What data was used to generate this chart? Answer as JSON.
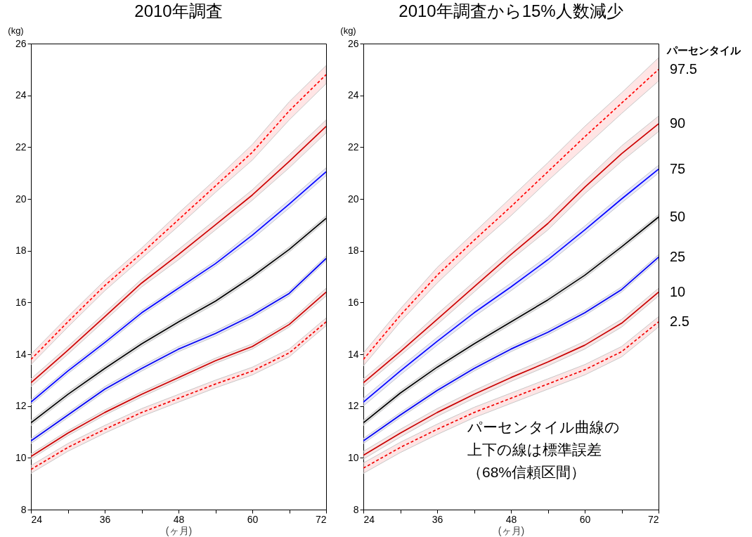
{
  "chart_data": [
    {
      "type": "line",
      "title": "2010年調査",
      "xlabel": "(ヶ月)",
      "ylabel": "(kg)",
      "x": [
        24,
        30,
        36,
        42,
        48,
        54,
        60,
        66,
        72
      ],
      "xlim": [
        24,
        72
      ],
      "xticks": [
        24,
        {
          "value": 30,
          "label": null
        },
        36,
        {
          "value": 42,
          "label": null
        },
        48,
        {
          "value": 54,
          "label": null
        },
        60,
        {
          "value": 66,
          "label": null
        },
        72
      ],
      "ylim": [
        8,
        26
      ],
      "yticks": [
        8,
        10,
        12,
        14,
        16,
        18,
        20,
        22,
        24,
        26
      ],
      "series": [
        {
          "color": "#ff0000",
          "line_style": "dashed",
          "values": [
            13.8,
            15.25,
            16.65,
            17.9,
            19.2,
            20.5,
            21.8,
            23.4,
            24.8
          ],
          "upper": [
            14.0,
            15.45,
            16.85,
            18.1,
            19.45,
            20.75,
            22.1,
            23.75,
            25.15
          ],
          "lower": [
            13.6,
            15.05,
            16.45,
            17.7,
            18.95,
            20.25,
            21.5,
            23.05,
            24.45
          ]
        },
        {
          "color": "#cc0000",
          "line_style": "solid",
          "values": [
            12.9,
            14.15,
            15.45,
            16.75,
            17.85,
            19.0,
            20.15,
            21.45,
            22.8
          ],
          "upper": [
            13.05,
            14.3,
            15.6,
            16.9,
            18.05,
            19.2,
            20.35,
            21.7,
            23.05
          ],
          "lower": [
            12.75,
            14.0,
            15.3,
            16.6,
            17.65,
            18.8,
            19.95,
            21.2,
            22.55
          ]
        },
        {
          "color": "#0000ff",
          "line_style": "solid",
          "values": [
            12.15,
            13.35,
            14.45,
            15.6,
            16.55,
            17.5,
            18.6,
            19.8,
            21.05
          ],
          "upper": [
            12.25,
            13.45,
            14.55,
            15.7,
            16.65,
            17.6,
            18.75,
            19.95,
            21.2
          ],
          "lower": [
            12.05,
            13.25,
            14.35,
            15.5,
            16.45,
            17.4,
            18.45,
            19.65,
            20.9
          ]
        },
        {
          "color": "#000000",
          "line_style": "solid",
          "values": [
            11.35,
            12.45,
            13.45,
            14.4,
            15.25,
            16.05,
            17.0,
            18.05,
            19.25
          ],
          "upper": [
            11.45,
            12.55,
            13.55,
            14.5,
            15.35,
            16.15,
            17.1,
            18.15,
            19.35
          ],
          "lower": [
            11.25,
            12.35,
            13.35,
            14.3,
            15.15,
            15.95,
            16.9,
            17.95,
            19.15
          ]
        },
        {
          "color": "#0000f0",
          "line_style": "solid",
          "values": [
            10.65,
            11.65,
            12.65,
            13.45,
            14.2,
            14.8,
            15.5,
            16.35,
            17.7
          ],
          "upper": [
            10.75,
            11.75,
            12.75,
            13.55,
            14.3,
            14.9,
            15.6,
            16.45,
            17.8
          ],
          "lower": [
            10.55,
            11.55,
            12.55,
            13.35,
            14.1,
            14.7,
            15.4,
            16.25,
            17.6
          ]
        },
        {
          "color": "#c80000",
          "line_style": "solid",
          "values": [
            10.05,
            10.95,
            11.75,
            12.45,
            13.1,
            13.75,
            14.3,
            15.15,
            16.4
          ],
          "upper": [
            10.15,
            11.05,
            11.85,
            12.55,
            13.2,
            13.85,
            14.4,
            15.25,
            16.55
          ],
          "lower": [
            9.95,
            10.85,
            11.65,
            12.35,
            13.0,
            13.65,
            14.2,
            15.05,
            16.25
          ]
        },
        {
          "color": "#f00000",
          "line_style": "dashed",
          "values": [
            9.55,
            10.4,
            11.1,
            11.75,
            12.3,
            12.85,
            13.35,
            14.05,
            15.25
          ],
          "upper": [
            9.7,
            10.55,
            11.25,
            11.9,
            12.45,
            13.0,
            13.5,
            14.2,
            15.4
          ],
          "lower": [
            9.4,
            10.25,
            10.95,
            11.6,
            12.15,
            12.7,
            13.2,
            13.9,
            15.1
          ]
        }
      ]
    },
    {
      "type": "line",
      "title": "2010年調査から15%人数減少",
      "xlabel": "(ヶ月)",
      "ylabel": "(kg)",
      "legend_title": "パーセンタイル",
      "annotations": [
        "パーセンタイル曲線の",
        "上下の線は標準誤差",
        "（68%信頼区間）"
      ],
      "x": [
        24,
        30,
        36,
        42,
        48,
        54,
        60,
        66,
        72
      ],
      "xlim": [
        24,
        72
      ],
      "xticks": [
        24,
        {
          "value": 30,
          "label": null
        },
        36,
        {
          "value": 42,
          "label": null
        },
        48,
        {
          "value": 54,
          "label": null
        },
        60,
        {
          "value": 66,
          "label": null
        },
        72
      ],
      "ylim": [
        8,
        26
      ],
      "yticks": [
        8,
        10,
        12,
        14,
        16,
        18,
        20,
        22,
        24,
        26
      ],
      "series": [
        {
          "name": "97.5",
          "color": "#ff0000",
          "line_style": "dashed",
          "values": [
            13.8,
            15.5,
            17.05,
            18.4,
            19.7,
            21.05,
            22.4,
            23.7,
            25.0
          ],
          "upper": [
            14.05,
            15.75,
            17.35,
            18.7,
            20.05,
            21.4,
            22.8,
            24.1,
            25.45
          ],
          "lower": [
            13.55,
            15.25,
            16.75,
            18.1,
            19.35,
            20.7,
            22.0,
            23.3,
            24.55
          ]
        },
        {
          "name": "90",
          "color": "#cc0000",
          "line_style": "solid",
          "values": [
            12.9,
            14.1,
            15.35,
            16.6,
            17.85,
            19.05,
            20.45,
            21.75,
            22.9
          ],
          "upper": [
            13.05,
            14.25,
            15.55,
            16.8,
            18.05,
            19.3,
            20.7,
            22.05,
            23.2
          ],
          "lower": [
            12.75,
            13.95,
            15.15,
            16.4,
            17.65,
            18.8,
            20.2,
            21.45,
            22.6
          ]
        },
        {
          "name": "75",
          "color": "#0000ff",
          "line_style": "solid",
          "values": [
            12.15,
            13.35,
            14.5,
            15.6,
            16.6,
            17.65,
            18.8,
            20.0,
            21.15
          ],
          "upper": [
            12.3,
            13.5,
            14.65,
            15.75,
            16.75,
            17.8,
            18.95,
            20.15,
            21.3
          ],
          "lower": [
            12.0,
            13.2,
            14.35,
            15.45,
            16.45,
            17.5,
            18.65,
            19.85,
            21.0
          ]
        },
        {
          "name": "50",
          "color": "#000000",
          "line_style": "solid",
          "values": [
            11.35,
            12.5,
            13.5,
            14.4,
            15.25,
            16.1,
            17.05,
            18.15,
            19.3
          ],
          "upper": [
            11.45,
            12.6,
            13.6,
            14.5,
            15.35,
            16.2,
            17.15,
            18.25,
            19.4
          ],
          "lower": [
            11.25,
            12.4,
            13.4,
            14.3,
            15.15,
            16.0,
            16.95,
            18.05,
            19.2
          ]
        },
        {
          "name": "25",
          "color": "#0000f0",
          "line_style": "solid",
          "values": [
            10.65,
            11.65,
            12.6,
            13.45,
            14.2,
            14.85,
            15.6,
            16.5,
            17.75
          ],
          "upper": [
            10.75,
            11.75,
            12.7,
            13.55,
            14.3,
            14.95,
            15.7,
            16.6,
            17.85
          ],
          "lower": [
            10.55,
            11.55,
            12.5,
            13.35,
            14.1,
            14.75,
            15.5,
            16.4,
            17.65
          ]
        },
        {
          "name": "10",
          "color": "#c80000",
          "line_style": "solid",
          "values": [
            10.1,
            10.95,
            11.75,
            12.45,
            13.1,
            13.7,
            14.35,
            15.2,
            16.4
          ],
          "upper": [
            10.25,
            11.1,
            11.9,
            12.6,
            13.25,
            13.85,
            14.5,
            15.35,
            16.55
          ],
          "lower": [
            9.95,
            10.8,
            11.6,
            12.3,
            12.95,
            13.55,
            14.2,
            15.05,
            16.25
          ]
        },
        {
          "name": "2.5",
          "color": "#f00000",
          "line_style": "dashed",
          "values": [
            9.6,
            10.4,
            11.1,
            11.75,
            12.3,
            12.85,
            13.4,
            14.1,
            15.25
          ],
          "upper": [
            9.8,
            10.6,
            11.3,
            11.95,
            12.5,
            13.05,
            13.6,
            14.3,
            15.45
          ],
          "lower": [
            9.4,
            10.2,
            10.9,
            11.55,
            12.1,
            12.65,
            13.2,
            13.9,
            15.05
          ]
        }
      ]
    }
  ]
}
